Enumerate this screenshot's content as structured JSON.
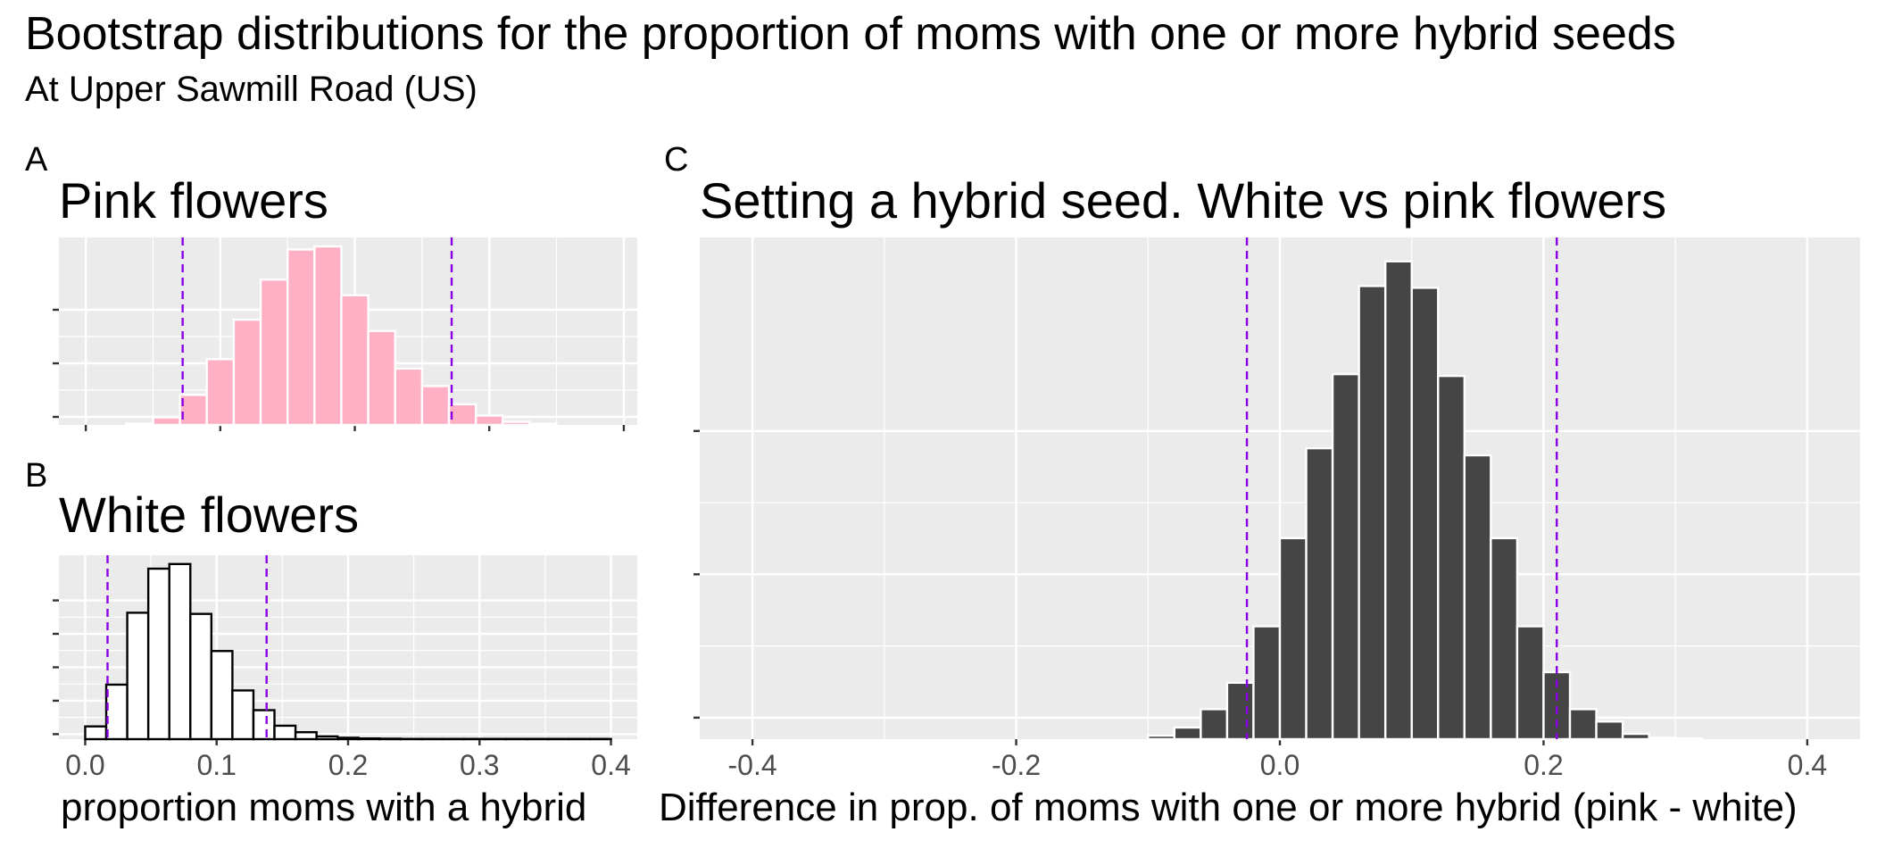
{
  "figure": {
    "title": "Bootstrap distributions for the proportion of moms with one or more hybrid seeds",
    "subtitle": "At Upper Sawmill Road (US)"
  },
  "chart_data": [
    {
      "tag": "A",
      "type": "bar",
      "title": "Pink flowers",
      "xlabel": "",
      "ylabel": "",
      "fill_color": "#FFB0C4",
      "outline_color": "#ffffff",
      "xlim": [
        -0.02,
        0.41
      ],
      "x_ticks": [
        0.0,
        0.1,
        0.2,
        0.3,
        0.4
      ],
      "x_tick_labels_shown": false,
      "y_ticks_count": 3,
      "bin_width": 0.02,
      "bin_centers": [
        0.04,
        0.06,
        0.08,
        0.1,
        0.12,
        0.14,
        0.16,
        0.18,
        0.2,
        0.22,
        0.24,
        0.26,
        0.28,
        0.3,
        0.32,
        0.34
      ],
      "counts": [
        2,
        12,
        48,
        105,
        168,
        232,
        280,
        285,
        207,
        150,
        90,
        62,
        33,
        15,
        5,
        2
      ],
      "ci_lines": [
        0.072,
        0.272
      ],
      "ci_color": "#8A00E6"
    },
    {
      "tag": "B",
      "type": "bar",
      "title": "White flowers",
      "xlabel": "proportion moms with a hybrid",
      "ylabel": "",
      "fill_color": "#ffffff",
      "outline_color": "#000000",
      "xlim": [
        -0.02,
        0.42
      ],
      "x_ticks": [
        0.0,
        0.1,
        0.2,
        0.3,
        0.4
      ],
      "x_tick_labels": [
        "0.0",
        "0.1",
        "0.2",
        "0.3",
        "0.4"
      ],
      "y_ticks_count": 5,
      "bin_width": 0.016,
      "bin_centers": [
        0.008,
        0.024,
        0.04,
        0.056,
        0.072,
        0.088,
        0.104,
        0.12,
        0.136,
        0.152,
        0.168,
        0.184,
        0.2,
        0.216,
        0.232,
        0.248,
        0.264,
        0.28,
        0.296,
        0.312,
        0.328,
        0.344,
        0.36,
        0.376,
        0.392
      ],
      "counts": [
        55,
        235,
        545,
        735,
        755,
        540,
        380,
        210,
        125,
        58,
        30,
        12,
        6,
        3,
        2,
        1,
        1,
        1,
        1,
        1,
        1,
        1,
        1,
        1,
        1
      ],
      "ci_lines": [
        0.017,
        0.138
      ],
      "ci_color": "#8A00E6"
    },
    {
      "tag": "C",
      "type": "bar",
      "title": "Setting a hybrid seed. White vs pink flowers",
      "xlabel": "Difference in prop. of moms with one or more hybrid (pink - white)",
      "ylabel": "",
      "fill_color": "#454545",
      "outline_color": "#ffffff",
      "xlim": [
        -0.44,
        0.44
      ],
      "x_ticks": [
        -0.4,
        -0.2,
        0.0,
        0.2,
        0.4
      ],
      "x_tick_labels": [
        "-0.4",
        "-0.2",
        "0.0",
        "0.2",
        "0.4"
      ],
      "y_ticks_count": 3,
      "bin_width": 0.02,
      "bin_centers": [
        -0.09,
        -0.07,
        -0.05,
        -0.03,
        -0.01,
        0.01,
        0.03,
        0.05,
        0.07,
        0.09,
        0.11,
        0.13,
        0.15,
        0.17,
        0.19,
        0.21,
        0.23,
        0.25,
        0.27,
        0.29,
        0.31
      ],
      "counts": [
        10,
        33,
        85,
        160,
        320,
        570,
        825,
        1035,
        1285,
        1355,
        1280,
        1030,
        805,
        570,
        320,
        190,
        85,
        50,
        15,
        4,
        2
      ],
      "ci_lines": [
        -0.025,
        0.21
      ],
      "ci_color": "#8A00E6"
    }
  ]
}
